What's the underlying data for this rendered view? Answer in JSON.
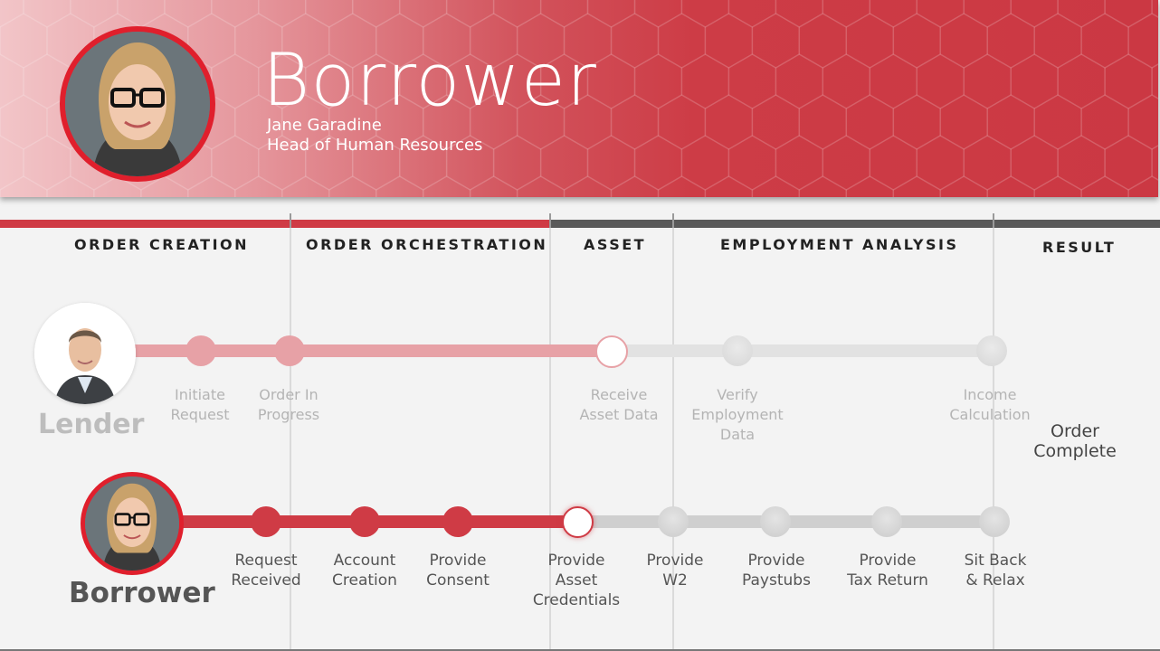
{
  "header": {
    "title": "Borrower",
    "person_name": "Jane Garadine",
    "person_role": "Head of Human Resources"
  },
  "phases": [
    {
      "label": "ORDER CREATION"
    },
    {
      "label": "ORDER ORCHESTRATION"
    },
    {
      "label": "ASSET"
    },
    {
      "label": "EMPLOYMENT ANALYSIS"
    },
    {
      "label": "RESULT"
    }
  ],
  "lender": {
    "name": "Lender",
    "steps": [
      {
        "label": "Initiate\nRequest",
        "state": "done"
      },
      {
        "label": "Order In\nProgress",
        "state": "done"
      },
      {
        "label": "Receive\nAsset Data",
        "state": "current"
      },
      {
        "label": "Verify\nEmployment\nData",
        "state": "pending"
      },
      {
        "label": "Income\nCalculation",
        "state": "pending"
      }
    ]
  },
  "borrower": {
    "name": "Borrower",
    "steps": [
      {
        "label": "Request\nReceived",
        "state": "done"
      },
      {
        "label": "Account\nCreation",
        "state": "done"
      },
      {
        "label": "Provide\nConsent",
        "state": "done"
      },
      {
        "label": "Provide\nAsset\nCredentials",
        "state": "current"
      },
      {
        "label": "Provide\nW2",
        "state": "pending"
      },
      {
        "label": "Provide\nPaystubs",
        "state": "pending"
      },
      {
        "label": "Provide\nTax Return",
        "state": "pending"
      },
      {
        "label": "Sit Back\n& Relax",
        "state": "pending"
      }
    ]
  },
  "result": {
    "label": "Order\nComplete"
  },
  "colors": {
    "accent": "#cf3b45",
    "accent_light": "#e7a1a6",
    "pending": "#cfcfcf",
    "pending_light": "#e2e2e2",
    "dark": "#5a5a5a"
  }
}
